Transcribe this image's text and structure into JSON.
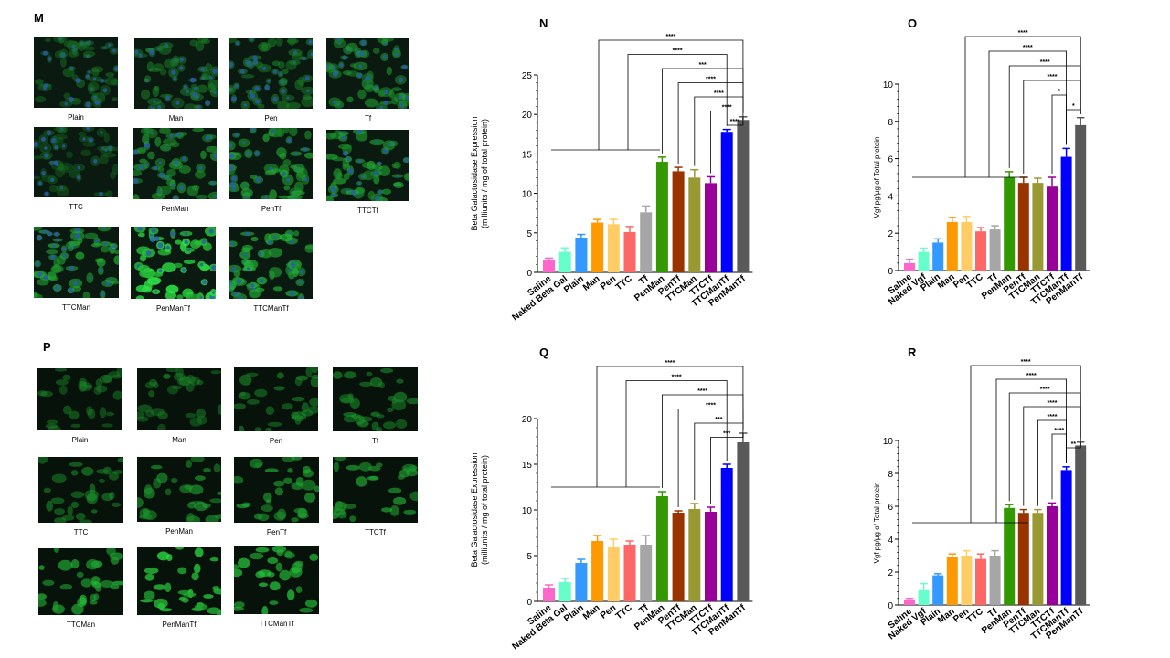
{
  "panels": {
    "M": "M",
    "N": "N",
    "O": "O",
    "P": "P",
    "Q": "Q",
    "R": "R"
  },
  "micrographs_M": {
    "labels": [
      "Plain",
      "Man",
      "Pen",
      "Tf",
      "TTC",
      "PenMan",
      "PenTf",
      "TTCTf",
      "TTCMan",
      "PenManTf",
      "TTCManTf"
    ],
    "style": "nuclei",
    "intensity": [
      0.25,
      0.3,
      0.35,
      0.45,
      0.15,
      0.5,
      0.55,
      0.55,
      0.6,
      0.95,
      0.65
    ]
  },
  "micrographs_P": {
    "labels": [
      "Plain",
      "Man",
      "Pen",
      "Tf",
      "TTC",
      "PenMan",
      "PenTf",
      "TTCTf",
      "TTCMan",
      "PenManTf",
      "TTCManTf"
    ],
    "style": "green",
    "intensity": [
      0.3,
      0.3,
      0.4,
      0.45,
      0.4,
      0.5,
      0.55,
      0.55,
      0.65,
      0.85,
      0.7
    ]
  },
  "chart_data": [
    {
      "id": "N",
      "type": "bar",
      "categories": [
        "Saline",
        "Naked Beta Gal",
        "Plain",
        "Man",
        "Pen",
        "TTC",
        "Tf",
        "PenMan",
        "PenTf",
        "TTCMan",
        "TTCTf",
        "TTCManTf",
        "PenManTf"
      ],
      "values": [
        1.5,
        2.6,
        4.4,
        6.3,
        6.1,
        5.1,
        7.6,
        14.0,
        12.8,
        12.0,
        11.3,
        17.8,
        19.3
      ],
      "errors": [
        0.3,
        0.5,
        0.4,
        0.4,
        0.6,
        0.7,
        0.8,
        0.6,
        0.5,
        1.0,
        0.8,
        0.3,
        0.4
      ],
      "colors": [
        "#ff66cc",
        "#66ffcc",
        "#3399ff",
        "#ff9900",
        "#ffcc66",
        "#ff6666",
        "#a6a6a6",
        "#339900",
        "#993300",
        "#999933",
        "#990099",
        "#0000ff",
        "#595959"
      ],
      "ylabel": "Beta Galactosidase Expression",
      "ylabel2": "(milliunits / mg of total protein)",
      "ylim": [
        0,
        25
      ],
      "yticks": [
        "0",
        "5",
        "10",
        "15",
        "20",
        "25"
      ],
      "brackets": [
        {
          "label": "****",
          "from": "group",
          "to": 12
        },
        {
          "label": "****",
          "from": "group",
          "to": 11
        },
        {
          "label": "***",
          "from": 7,
          "to": 12
        },
        {
          "label": "****",
          "from": 8,
          "to": 12
        },
        {
          "label": "****",
          "from": 9,
          "to": 12
        },
        {
          "label": "****",
          "from": 10,
          "to": 12
        },
        {
          "label": "****",
          "from": 11,
          "to": 12
        }
      ]
    },
    {
      "id": "O",
      "type": "bar",
      "categories": [
        "Saline",
        "Naked Vgf",
        "Plain",
        "Man",
        "Pen",
        "TTC",
        "Tf",
        "PenMan",
        "PenTf",
        "TTCMan",
        "TTCTf",
        "TTCManTf",
        "PenManTf"
      ],
      "values": [
        0.4,
        1.0,
        1.5,
        2.6,
        2.6,
        2.1,
        2.2,
        5.0,
        4.7,
        4.7,
        4.5,
        6.1,
        7.8
      ],
      "errors": [
        0.2,
        0.2,
        0.2,
        0.25,
        0.3,
        0.2,
        0.2,
        0.3,
        0.3,
        0.25,
        0.5,
        0.45,
        0.4
      ],
      "colors": [
        "#ff66cc",
        "#66ffcc",
        "#3399ff",
        "#ff9900",
        "#ffcc66",
        "#ff6666",
        "#a6a6a6",
        "#339900",
        "#993300",
        "#999933",
        "#990099",
        "#0000ff",
        "#595959"
      ],
      "ylabel": "Vgf pg/µg of Total protein",
      "ylabel2": "",
      "ylim": [
        0,
        10
      ],
      "yticks": [
        "0",
        "2",
        "4",
        "6",
        "8",
        "10"
      ],
      "brackets": [
        {
          "label": "****",
          "from": "group",
          "to": 12
        },
        {
          "label": "****",
          "from": "group",
          "to": 11
        },
        {
          "label": "****",
          "from": 7,
          "to": 12
        },
        {
          "label": "****",
          "from": 8,
          "to": 12
        },
        {
          "label": "*",
          "from": 10,
          "to": 11
        },
        {
          "label": "*",
          "from": 11,
          "to": 12
        }
      ]
    },
    {
      "id": "Q",
      "type": "bar",
      "categories": [
        "Saline",
        "Naked Beta Gal",
        "Plain",
        "Man",
        "Pen",
        "TTC",
        "Tf",
        "PenMan",
        "PenTf",
        "TTCMan",
        "TTCTf",
        "TTCManTf",
        "PenManTf"
      ],
      "values": [
        1.5,
        2.1,
        4.2,
        6.6,
        5.9,
        6.2,
        6.2,
        11.5,
        9.7,
        10.1,
        9.8,
        14.6,
        17.4
      ],
      "errors": [
        0.3,
        0.4,
        0.4,
        0.6,
        0.9,
        0.4,
        1.0,
        0.5,
        0.2,
        0.6,
        0.5,
        0.4,
        1.0
      ],
      "colors": [
        "#ff66cc",
        "#66ffcc",
        "#3399ff",
        "#ff9900",
        "#ffcc66",
        "#ff6666",
        "#a6a6a6",
        "#339900",
        "#993300",
        "#999933",
        "#990099",
        "#0000ff",
        "#595959"
      ],
      "ylabel": "Beta Galactosidase Expression",
      "ylabel2": "(milliunits / mg of total protein)",
      "ylim": [
        0,
        20
      ],
      "yticks": [
        "0",
        "5",
        "10",
        "15",
        "20"
      ],
      "brackets": [
        {
          "label": "****",
          "from": "group",
          "to": 12
        },
        {
          "label": "****",
          "from": "group",
          "to": 11
        },
        {
          "label": "****",
          "from": 7,
          "to": 12
        },
        {
          "label": "****",
          "from": 8,
          "to": 12
        },
        {
          "label": "***",
          "from": 9,
          "to": 12
        },
        {
          "label": "***",
          "from": 10,
          "to": 12
        }
      ]
    },
    {
      "id": "R",
      "type": "bar",
      "categories": [
        "Saline",
        "Naked Vgf",
        "Plain",
        "Man",
        "Pen",
        "TTC",
        "Tf",
        "PenMan",
        "PenTf",
        "TTCMan",
        "TTCTf",
        "TTCManTf",
        "PenManTf"
      ],
      "values": [
        0.3,
        0.9,
        1.8,
        2.9,
        3.0,
        2.8,
        3.0,
        5.9,
        5.6,
        5.6,
        6.0,
        8.2,
        9.7
      ],
      "errors": [
        0.1,
        0.4,
        0.1,
        0.2,
        0.3,
        0.3,
        0.3,
        0.2,
        0.2,
        0.2,
        0.2,
        0.2,
        0.2
      ],
      "colors": [
        "#ff66cc",
        "#66ffcc",
        "#3399ff",
        "#ff9900",
        "#ffcc66",
        "#ff6666",
        "#a6a6a6",
        "#339900",
        "#993300",
        "#999933",
        "#990099",
        "#0000ff",
        "#595959"
      ],
      "ylabel": "Vgf pg/µg of Total protein",
      "ylabel2": "",
      "ylim": [
        0,
        10
      ],
      "yticks": [
        "0",
        "2",
        "4",
        "6",
        "8",
        "10"
      ],
      "brackets": [
        {
          "label": "****",
          "from": "group",
          "to": 12
        },
        {
          "label": "****",
          "from": "group",
          "to": 11
        },
        {
          "label": "****",
          "from": 7,
          "to": 12
        },
        {
          "label": "****",
          "from": 8,
          "to": 12
        },
        {
          "label": "****",
          "from": 9,
          "to": 11
        },
        {
          "label": "****",
          "from": 10,
          "to": 11
        },
        {
          "label": "**",
          "from": 11,
          "to": 12
        }
      ]
    }
  ]
}
